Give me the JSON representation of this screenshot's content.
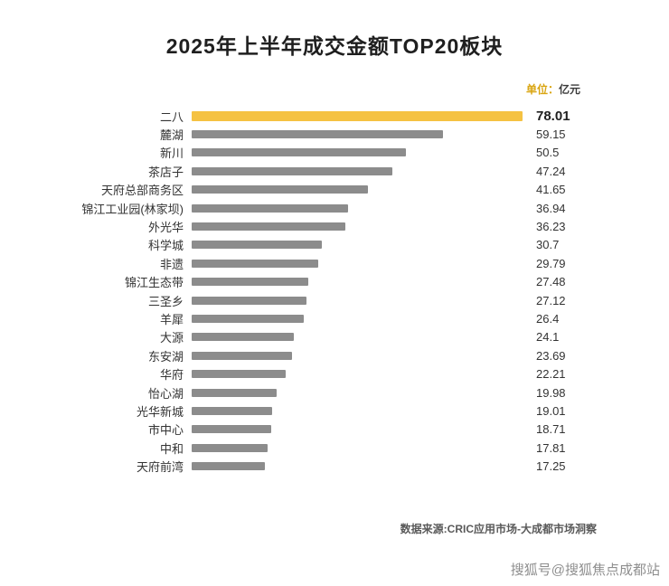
{
  "chart": {
    "unit_label": {
      "prefix": "单位：",
      "value": "亿元"
    },
    "source": "数据来源:CRIC应用市场-大成都市场洞察",
    "watermark": "搜狐号@搜狐焦点成都站",
    "colors": {
      "highlight_bar": "#F5C242",
      "default_bar": "#8C8C8C"
    }
  },
  "chart_data": {
    "type": "bar",
    "orientation": "horizontal",
    "title": "2025年上半年成交金额TOP20板块",
    "unit": "亿元",
    "legend": "none",
    "grid": false,
    "xlim": [
      0,
      78.01
    ],
    "highlight_index": 0,
    "categories": [
      "二八",
      "麓湖",
      "新川",
      "茶店子",
      "天府总部商务区",
      "锦江工业园(林家坝)",
      "外光华",
      "科学城",
      "非遗",
      "锦江生态带",
      "三圣乡",
      "羊犀",
      "大源",
      "东安湖",
      "华府",
      "怡心湖",
      "光华新城",
      "市中心",
      "中和",
      "天府前湾"
    ],
    "values": [
      78.01,
      59.15,
      50.5,
      47.24,
      41.65,
      36.94,
      36.23,
      30.7,
      29.79,
      27.48,
      27.12,
      26.4,
      24.1,
      23.69,
      22.21,
      19.98,
      19.01,
      18.71,
      17.81,
      17.25
    ]
  }
}
